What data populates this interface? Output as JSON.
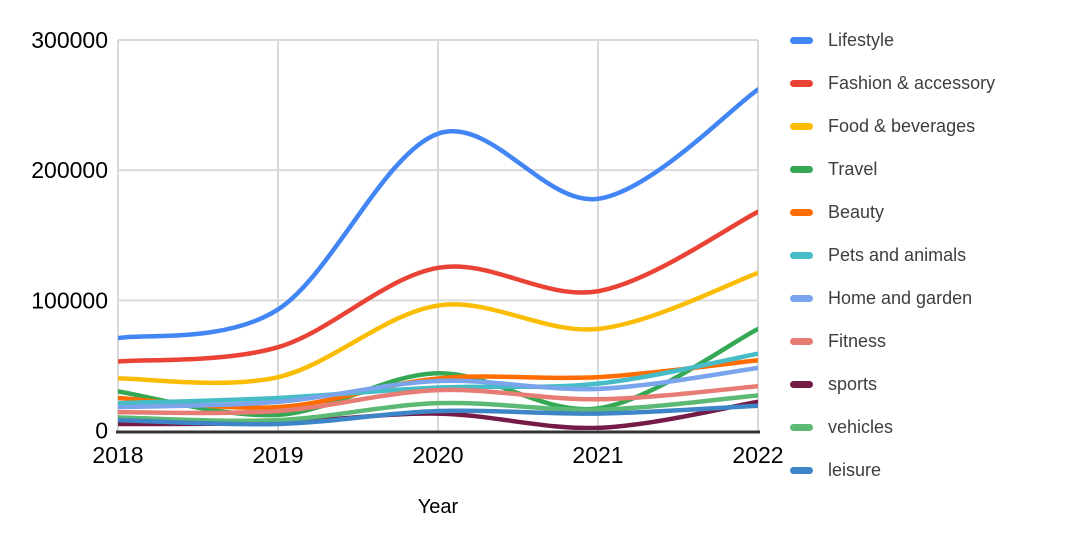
{
  "chart_data": {
    "type": "line",
    "title": "",
    "xlabel": "Year",
    "ylabel": "",
    "x": [
      2018,
      2019,
      2020,
      2021,
      2022
    ],
    "x_tick_labels": [
      "2018",
      "2019",
      "2020",
      "2021",
      "2022"
    ],
    "y_ticks": [
      0,
      100000,
      200000,
      300000
    ],
    "y_tick_labels": [
      "0",
      "100000",
      "200000",
      "300000"
    ],
    "ylim": [
      0,
      300000
    ],
    "grid": true,
    "line_style": "smooth",
    "legend_position": "right",
    "axis_color": "#333333",
    "gridline_color": "#d9d9d9",
    "tick_label_color": "#000000",
    "legend_text_color": "#3c4043",
    "series": [
      {
        "name": "Lifestyle",
        "color": "#4285F4",
        "values": [
          71000,
          93000,
          228000,
          178000,
          262000
        ]
      },
      {
        "name": "Fashion & accessory",
        "color": "#EA4335",
        "values": [
          53000,
          64000,
          125000,
          107000,
          168000
        ]
      },
      {
        "name": "Food & beverages",
        "color": "#FBBC04",
        "values": [
          40000,
          41000,
          96000,
          78000,
          121000
        ]
      },
      {
        "name": "Travel",
        "color": "#34A853",
        "values": [
          30000,
          12000,
          44000,
          17000,
          78000
        ]
      },
      {
        "name": "Beauty",
        "color": "#FF6D01",
        "values": [
          25000,
          18000,
          40000,
          41000,
          54000
        ]
      },
      {
        "name": "Pets and animals",
        "color": "#46BDC6",
        "values": [
          21000,
          25000,
          33000,
          36000,
          59000
        ]
      },
      {
        "name": "Home and garden",
        "color": "#7AA4EB",
        "values": [
          18000,
          22000,
          38000,
          32000,
          48000
        ]
      },
      {
        "name": "Fitness",
        "color": "#E67C73",
        "values": [
          14000,
          15000,
          31000,
          24000,
          34000
        ]
      },
      {
        "name": "sports",
        "color": "#741B47",
        "values": [
          5000,
          6000,
          13000,
          2000,
          22000
        ]
      },
      {
        "name": "vehicles",
        "color": "#5BB974",
        "values": [
          10000,
          8000,
          21000,
          16000,
          27000
        ]
      },
      {
        "name": "leisure",
        "color": "#3D85C6",
        "values": [
          8000,
          5000,
          15000,
          13000,
          19000
        ]
      }
    ]
  }
}
